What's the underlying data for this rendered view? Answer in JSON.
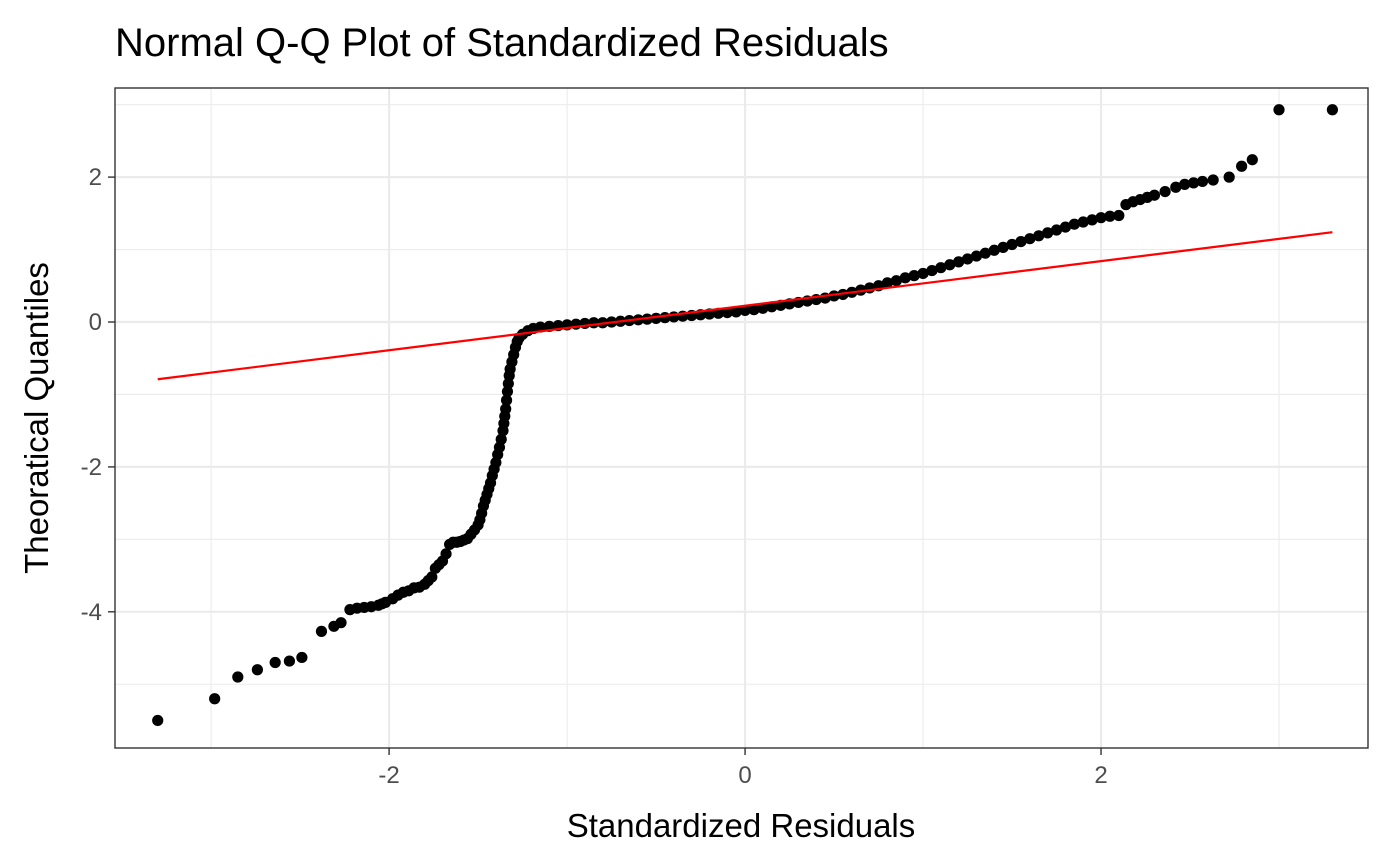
{
  "chart_data": {
    "type": "scatter",
    "title": "Normal Q-Q Plot of Standardized Residuals",
    "xlabel": "Standardized Residuals",
    "ylabel": "Theoratical Quantiles",
    "xlim": [
      -3.54,
      3.5
    ],
    "ylim": [
      -5.88,
      3.23
    ],
    "x_ticks": [
      -2,
      0,
      2
    ],
    "x_tick_labels": [
      "-2",
      "0",
      "2"
    ],
    "y_ticks": [
      -4,
      -2,
      0,
      2
    ],
    "y_tick_labels": [
      "-4",
      "-2",
      "0",
      "2"
    ],
    "x_minor_ticks": [
      -3,
      -1,
      1,
      3
    ],
    "y_minor_ticks": [
      -5,
      -3,
      -1,
      1,
      3
    ],
    "grid": true,
    "colors": {
      "points": "#000000",
      "reference_line": "#ff0000",
      "grid": "#ebebeb",
      "panel_border": "#333333"
    },
    "series": [
      {
        "type": "scatter",
        "points": [
          [
            -3.3,
            -5.5
          ],
          [
            -2.98,
            -5.2
          ],
          [
            -2.85,
            -4.9
          ],
          [
            -2.74,
            -4.8
          ],
          [
            -2.64,
            -4.7
          ],
          [
            -2.56,
            -4.68
          ],
          [
            -2.49,
            -4.63
          ],
          [
            -2.38,
            -4.27
          ],
          [
            -2.31,
            -4.2
          ],
          [
            -2.27,
            -4.15
          ],
          [
            -2.22,
            -3.97
          ],
          [
            -2.18,
            -3.95
          ],
          [
            -2.14,
            -3.94
          ],
          [
            -2.1,
            -3.93
          ],
          [
            -2.06,
            -3.91
          ],
          [
            -2.04,
            -3.89
          ],
          [
            -2.02,
            -3.87
          ],
          [
            -1.98,
            -3.82
          ],
          [
            -1.95,
            -3.77
          ],
          [
            -1.92,
            -3.73
          ],
          [
            -1.89,
            -3.71
          ],
          [
            -1.86,
            -3.67
          ],
          [
            -1.83,
            -3.66
          ],
          [
            -1.8,
            -3.62
          ],
          [
            -1.78,
            -3.57
          ],
          [
            -1.76,
            -3.52
          ],
          [
            -1.74,
            -3.4
          ],
          [
            -1.72,
            -3.35
          ],
          [
            -1.7,
            -3.3
          ],
          [
            -1.68,
            -3.2
          ],
          [
            -1.66,
            -3.07
          ],
          [
            -1.64,
            -3.04
          ],
          [
            -1.62,
            -3.04
          ],
          [
            -1.6,
            -3.03
          ],
          [
            -1.58,
            -3.01
          ],
          [
            -1.56,
            -2.99
          ],
          [
            -1.54,
            -2.93
          ],
          [
            -1.52,
            -2.87
          ],
          [
            -1.5,
            -2.8
          ],
          [
            -1.49,
            -2.73
          ],
          [
            -1.48,
            -2.64
          ],
          [
            -1.47,
            -2.54
          ],
          [
            -1.46,
            -2.46
          ],
          [
            -1.45,
            -2.38
          ],
          [
            -1.44,
            -2.3
          ],
          [
            -1.43,
            -2.22
          ],
          [
            -1.42,
            -2.12
          ],
          [
            -1.41,
            -2.03
          ],
          [
            -1.4,
            -1.94
          ],
          [
            -1.39,
            -1.83
          ],
          [
            -1.38,
            -1.73
          ],
          [
            -1.37,
            -1.62
          ],
          [
            -1.36,
            -1.5
          ],
          [
            -1.355,
            -1.4
          ],
          [
            -1.35,
            -1.3
          ],
          [
            -1.345,
            -1.2
          ],
          [
            -1.34,
            -1.08
          ],
          [
            -1.335,
            -0.96
          ],
          [
            -1.33,
            -0.85
          ],
          [
            -1.325,
            -0.74
          ],
          [
            -1.32,
            -0.65
          ],
          [
            -1.31,
            -0.55
          ],
          [
            -1.3,
            -0.45
          ],
          [
            -1.29,
            -0.35
          ],
          [
            -1.28,
            -0.27
          ],
          [
            -1.27,
            -0.22
          ],
          [
            -1.25,
            -0.17
          ],
          [
            -1.22,
            -0.12
          ],
          [
            -1.19,
            -0.09
          ],
          [
            -1.15,
            -0.07
          ],
          [
            -1.1,
            -0.06
          ],
          [
            -1.05,
            -0.05
          ],
          [
            -1.0,
            -0.04
          ],
          [
            -0.95,
            -0.03
          ],
          [
            -0.9,
            -0.02
          ],
          [
            -0.85,
            -0.01
          ],
          [
            -0.8,
            -0.01
          ],
          [
            -0.75,
            0.0
          ],
          [
            -0.7,
            0.01
          ],
          [
            -0.65,
            0.02
          ],
          [
            -0.6,
            0.03
          ],
          [
            -0.55,
            0.04
          ],
          [
            -0.5,
            0.05
          ],
          [
            -0.45,
            0.06
          ],
          [
            -0.4,
            0.07
          ],
          [
            -0.35,
            0.08
          ],
          [
            -0.3,
            0.09
          ],
          [
            -0.25,
            0.1
          ],
          [
            -0.2,
            0.11
          ],
          [
            -0.15,
            0.12
          ],
          [
            -0.1,
            0.13
          ],
          [
            -0.05,
            0.14
          ],
          [
            0.0,
            0.16
          ],
          [
            0.05,
            0.17
          ],
          [
            0.1,
            0.19
          ],
          [
            0.15,
            0.21
          ],
          [
            0.2,
            0.23
          ],
          [
            0.25,
            0.25
          ],
          [
            0.3,
            0.27
          ],
          [
            0.35,
            0.29
          ],
          [
            0.4,
            0.31
          ],
          [
            0.45,
            0.33
          ],
          [
            0.5,
            0.36
          ],
          [
            0.55,
            0.38
          ],
          [
            0.6,
            0.41
          ],
          [
            0.65,
            0.44
          ],
          [
            0.7,
            0.47
          ],
          [
            0.75,
            0.5
          ],
          [
            0.8,
            0.54
          ],
          [
            0.85,
            0.57
          ],
          [
            0.9,
            0.61
          ],
          [
            0.95,
            0.64
          ],
          [
            1.0,
            0.67
          ],
          [
            1.05,
            0.71
          ],
          [
            1.1,
            0.75
          ],
          [
            1.15,
            0.79
          ],
          [
            1.2,
            0.83
          ],
          [
            1.25,
            0.87
          ],
          [
            1.3,
            0.91
          ],
          [
            1.35,
            0.95
          ],
          [
            1.4,
            0.99
          ],
          [
            1.45,
            1.03
          ],
          [
            1.5,
            1.07
          ],
          [
            1.55,
            1.11
          ],
          [
            1.6,
            1.15
          ],
          [
            1.65,
            1.19
          ],
          [
            1.7,
            1.23
          ],
          [
            1.75,
            1.27
          ],
          [
            1.8,
            1.31
          ],
          [
            1.85,
            1.35
          ],
          [
            1.9,
            1.38
          ],
          [
            1.95,
            1.41
          ],
          [
            2.0,
            1.44
          ],
          [
            2.05,
            1.46
          ],
          [
            2.1,
            1.47
          ],
          [
            2.14,
            1.62
          ],
          [
            2.18,
            1.66
          ],
          [
            2.22,
            1.69
          ],
          [
            2.26,
            1.72
          ],
          [
            2.3,
            1.75
          ],
          [
            2.36,
            1.8
          ],
          [
            2.42,
            1.86
          ],
          [
            2.47,
            1.9
          ],
          [
            2.52,
            1.92
          ],
          [
            2.57,
            1.94
          ],
          [
            2.63,
            1.96
          ],
          [
            2.72,
            2.0
          ],
          [
            2.79,
            2.15
          ],
          [
            2.85,
            2.24
          ],
          [
            3.0,
            2.93
          ],
          [
            3.3,
            2.93
          ]
        ]
      }
    ],
    "reference_line": {
      "x": [
        -3.3,
        3.3
      ],
      "y": [
        -0.79,
        1.24
      ]
    }
  }
}
